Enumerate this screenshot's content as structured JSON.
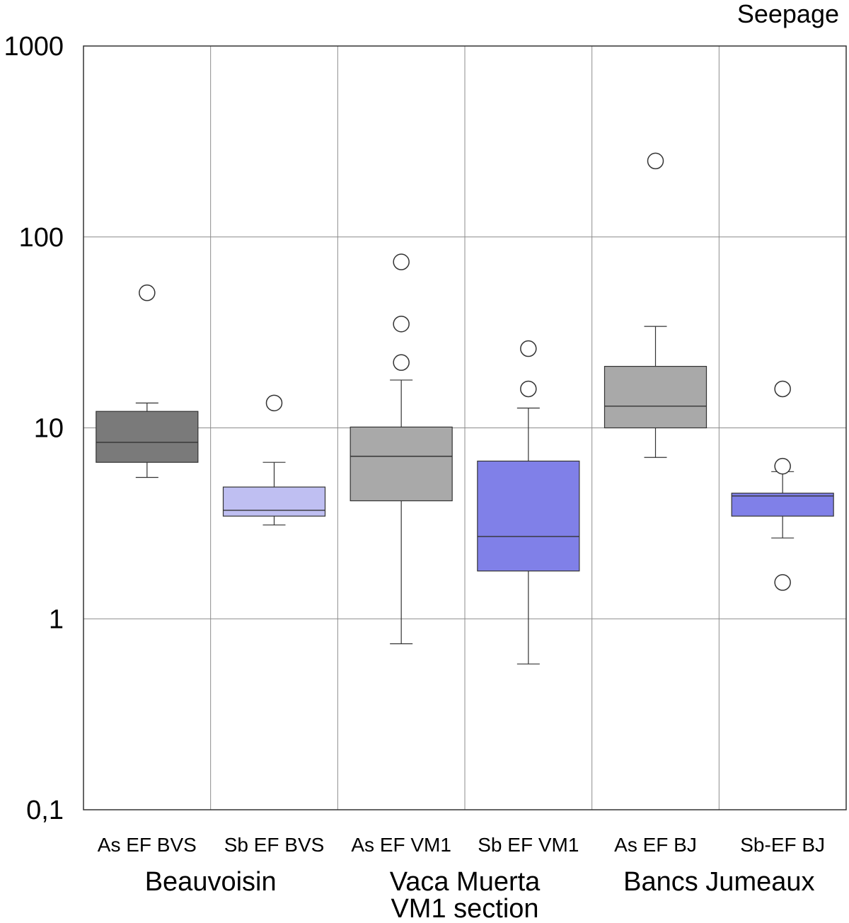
{
  "chart_data": {
    "type": "boxplot",
    "title": "Seepage",
    "yscale": "log",
    "ylim": [
      0.1,
      1000
    ],
    "y_ticks": [
      {
        "value": 1000,
        "label": "1000"
      },
      {
        "value": 100,
        "label": "100"
      },
      {
        "value": 10,
        "label": "10"
      },
      {
        "value": 1,
        "label": "1"
      },
      {
        "value": 0.1,
        "label": "0,1"
      }
    ],
    "grid": true,
    "boxes": [
      {
        "label": "As EF BVS",
        "color": "#7a7a7a",
        "whisker_low": 5.5,
        "q1": 6.6,
        "median": 8.4,
        "q3": 12.2,
        "whisker_high": 13.5,
        "outliers": [
          51
        ]
      },
      {
        "label": "Sb EF BVS",
        "color": "#bfbff2",
        "whisker_low": 3.1,
        "q1": 3.45,
        "median": 3.7,
        "q3": 4.9,
        "whisker_high": 6.6,
        "outliers": [
          13.5
        ]
      },
      {
        "label": "As EF VM1",
        "color": "#a9a9a9",
        "whisker_low": 0.74,
        "q1": 4.15,
        "median": 7.1,
        "q3": 10.1,
        "whisker_high": 17.8,
        "outliers": [
          22,
          35,
          74
        ]
      },
      {
        "label": "Sb EF VM1",
        "color": "#8080e8",
        "whisker_low": 0.58,
        "q1": 1.78,
        "median": 2.7,
        "q3": 6.7,
        "whisker_high": 12.7,
        "outliers": [
          16,
          26
        ]
      },
      {
        "label": "As EF BJ",
        "color": "#a9a9a9",
        "whisker_low": 7.0,
        "q1": 10.0,
        "median": 13.0,
        "q3": 21.0,
        "whisker_high": 34.0,
        "outliers": [
          250
        ]
      },
      {
        "label": "Sb-EF BJ",
        "color": "#8080e8",
        "whisker_low": 2.65,
        "q1": 3.45,
        "median": 4.4,
        "q3": 4.55,
        "whisker_high": 5.9,
        "outliers": [
          1.55,
          6.3,
          16
        ]
      }
    ],
    "groups": [
      {
        "lines": [
          "Beauvoisin"
        ],
        "span": [
          0,
          1
        ]
      },
      {
        "lines": [
          "Vaca Muerta",
          "VM1 section"
        ],
        "span": [
          2,
          3
        ]
      },
      {
        "lines": [
          "Bancs Jumeaux"
        ],
        "span": [
          4,
          5
        ]
      }
    ]
  }
}
